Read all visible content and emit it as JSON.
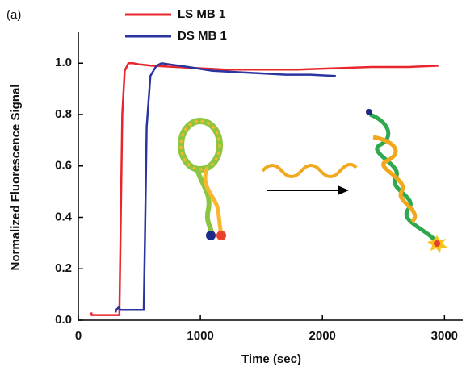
{
  "chart_data": {
    "type": "line",
    "panel_label": "(a)",
    "xlabel": "Time (sec)",
    "ylabel": "Normalized Fluorescence Signal",
    "xlim": [
      0,
      3150
    ],
    "ylim": [
      0,
      1.12
    ],
    "xticks": [
      0,
      1000,
      2000,
      3000
    ],
    "yticks": [
      {
        "value": 0,
        "label": "0.0"
      },
      0.2,
      0.4,
      0.6,
      0.8,
      {
        "value": 1,
        "label": "1.0"
      }
    ],
    "series": [
      {
        "name": "LS MB 1",
        "color": "#e8262b",
        "x": [
          106,
          110,
          200,
          300,
          336,
          345,
          360,
          380,
          410,
          450,
          500,
          600,
          800,
          1000,
          1200,
          1500,
          1800,
          2100,
          2400,
          2700,
          2950
        ],
        "values": [
          0.03,
          0.02,
          0.02,
          0.02,
          0.02,
          0.3,
          0.8,
          0.97,
          1.0,
          1.0,
          0.995,
          0.99,
          0.985,
          0.98,
          0.975,
          0.975,
          0.975,
          0.98,
          0.985,
          0.985,
          0.99
        ]
      },
      {
        "name": "DS MB 1",
        "color": "#2a35a0",
        "x": [
          305,
          310,
          330,
          345,
          350,
          450,
          536,
          545,
          560,
          590,
          640,
          682,
          750,
          900,
          1100,
          1300,
          1500,
          1700,
          1900,
          2110
        ],
        "values": [
          0.03,
          0.04,
          0.05,
          0.04,
          0.04,
          0.04,
          0.04,
          0.3,
          0.75,
          0.95,
          0.99,
          1.0,
          0.995,
          0.985,
          0.97,
          0.965,
          0.96,
          0.955,
          0.955,
          0.95
        ]
      }
    ]
  }
}
